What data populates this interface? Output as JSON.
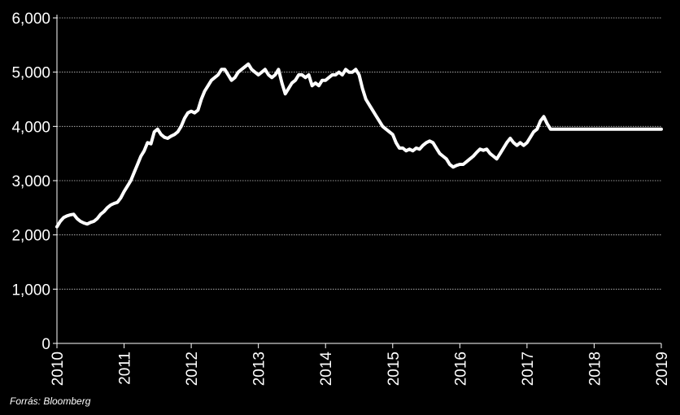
{
  "source_note": "Forrás: Bloomberg",
  "chart_data": {
    "type": "line",
    "title": "",
    "xlabel": "",
    "ylabel": "",
    "ylim": [
      0,
      6000
    ],
    "xlim": [
      2010,
      2019
    ],
    "grid": true,
    "legend": "none",
    "y_ticks": [
      {
        "value": 0,
        "label": "0"
      },
      {
        "value": 1000,
        "label": "1,000"
      },
      {
        "value": 2000,
        "label": "2,000"
      },
      {
        "value": 3000,
        "label": "3,000"
      },
      {
        "value": 4000,
        "label": "4,000"
      },
      {
        "value": 5000,
        "label": "5,000"
      },
      {
        "value": 6000,
        "label": "6,000"
      }
    ],
    "x_ticks": [
      {
        "value": 2010,
        "label": "2010"
      },
      {
        "value": 2011,
        "label": "2011"
      },
      {
        "value": 2012,
        "label": "2012"
      },
      {
        "value": 2013,
        "label": "2013"
      },
      {
        "value": 2014,
        "label": "2014"
      },
      {
        "value": 2015,
        "label": "2015"
      },
      {
        "value": 2016,
        "label": "2016"
      },
      {
        "value": 2017,
        "label": "2017"
      },
      {
        "value": 2018,
        "label": "2018"
      },
      {
        "value": 2019,
        "label": "2019"
      }
    ],
    "series": [
      {
        "color": "#ffffff",
        "x": [
          2010.0,
          2010.05,
          2010.1,
          2010.15,
          2010.2,
          2010.25,
          2010.3,
          2010.35,
          2010.4,
          2010.45,
          2010.5,
          2010.55,
          2010.6,
          2010.65,
          2010.7,
          2010.75,
          2010.8,
          2010.85,
          2010.9,
          2010.95,
          2011.0,
          2011.05,
          2011.1,
          2011.15,
          2011.2,
          2011.25,
          2011.3,
          2011.35,
          2011.4,
          2011.45,
          2011.5,
          2011.55,
          2011.6,
          2011.65,
          2011.7,
          2011.75,
          2011.8,
          2011.85,
          2011.9,
          2011.95,
          2012.0,
          2012.05,
          2012.1,
          2012.15,
          2012.2,
          2012.25,
          2012.3,
          2012.35,
          2012.4,
          2012.45,
          2012.5,
          2012.55,
          2012.6,
          2012.65,
          2012.7,
          2012.75,
          2012.8,
          2012.85,
          2012.9,
          2012.95,
          2013.0,
          2013.05,
          2013.1,
          2013.15,
          2013.2,
          2013.25,
          2013.3,
          2013.35,
          2013.4,
          2013.45,
          2013.5,
          2013.55,
          2013.6,
          2013.65,
          2013.7,
          2013.75,
          2013.8,
          2013.85,
          2013.9,
          2013.95,
          2014.0,
          2014.05,
          2014.1,
          2014.15,
          2014.2,
          2014.25,
          2014.3,
          2014.35,
          2014.4,
          2014.45,
          2014.5,
          2014.55,
          2014.6,
          2014.65,
          2014.7,
          2014.75,
          2014.8,
          2014.85,
          2014.9,
          2014.95,
          2015.0,
          2015.05,
          2015.1,
          2015.15,
          2015.2,
          2015.25,
          2015.3,
          2015.35,
          2015.4,
          2015.45,
          2015.5,
          2015.55,
          2015.6,
          2015.65,
          2015.7,
          2015.75,
          2015.8,
          2015.85,
          2015.9,
          2015.95,
          2016.0,
          2016.05,
          2016.1,
          2016.15,
          2016.2,
          2016.25,
          2016.3,
          2016.35,
          2016.4,
          2016.45,
          2016.5,
          2016.55,
          2016.6,
          2016.65,
          2016.7,
          2016.75,
          2016.8,
          2016.85,
          2016.9,
          2016.95,
          2017.0,
          2017.05,
          2017.1,
          2017.15,
          2017.2,
          2017.25,
          2017.3,
          2017.35,
          2017.4,
          2017.45,
          2017.5,
          2017.55,
          2017.6,
          2017.65,
          2017.7,
          2017.75,
          2017.8,
          2017.85,
          2017.9,
          2017.95,
          2018.0,
          2018.05,
          2018.1,
          2018.15,
          2018.2,
          2018.25,
          2018.3,
          2018.35,
          2018.4,
          2018.45,
          2018.5,
          2018.55,
          2018.6,
          2018.65,
          2018.7,
          2018.75,
          2018.8,
          2018.85,
          2018.9,
          2018.95,
          2018.98,
          2019.0
        ],
        "y": [
          2150,
          2250,
          2320,
          2350,
          2370,
          2380,
          2300,
          2250,
          2220,
          2200,
          2230,
          2250,
          2300,
          2380,
          2430,
          2500,
          2550,
          2580,
          2600,
          2680,
          2800,
          2900,
          3000,
          3150,
          3300,
          3450,
          3550,
          3700,
          3680,
          3900,
          3950,
          3850,
          3800,
          3780,
          3820,
          3850,
          3900,
          4000,
          4150,
          4250,
          4280,
          4250,
          4300,
          4500,
          4650,
          4750,
          4850,
          4900,
          4950,
          5050,
          5050,
          4950,
          4850,
          4900,
          5000,
          5050,
          5100,
          5150,
          5050,
          5000,
          4950,
          5000,
          5050,
          4950,
          4900,
          4950,
          5050,
          4800,
          4600,
          4700,
          4800,
          4850,
          4950,
          4950,
          4900,
          4950,
          4750,
          4800,
          4750,
          4850,
          4850,
          4900,
          4950,
          4950,
          5000,
          4950,
          5050,
          5000,
          5000,
          5050,
          4950,
          4700,
          4500,
          4400,
          4300,
          4200,
          4100,
          4000,
          3950,
          3900,
          3850,
          3700,
          3600,
          3600,
          3550,
          3580,
          3550,
          3600,
          3580,
          3650,
          3700,
          3730,
          3700,
          3600,
          3500,
          3450,
          3400,
          3300,
          3250,
          3280,
          3300,
          3300,
          3350,
          3400,
          3450,
          3520,
          3580,
          3560,
          3580,
          3500,
          3450,
          3400,
          3500,
          3600,
          3700,
          3780,
          3700,
          3650,
          3700,
          3650,
          3700,
          3800,
          3900,
          3950,
          4100,
          4180,
          4050,
          3950,
          3950,
          3950,
          3950,
          3950,
          3950,
          3950,
          3950,
          3950,
          3950,
          3950,
          3950,
          3950,
          3950,
          3950,
          3950,
          3950,
          3950,
          3950,
          3950,
          3950,
          3950,
          3950,
          3950,
          3950,
          3950,
          3950,
          3950,
          3950,
          3950,
          3950,
          3950,
          3950,
          3950,
          3950
        ]
      }
    ]
  }
}
